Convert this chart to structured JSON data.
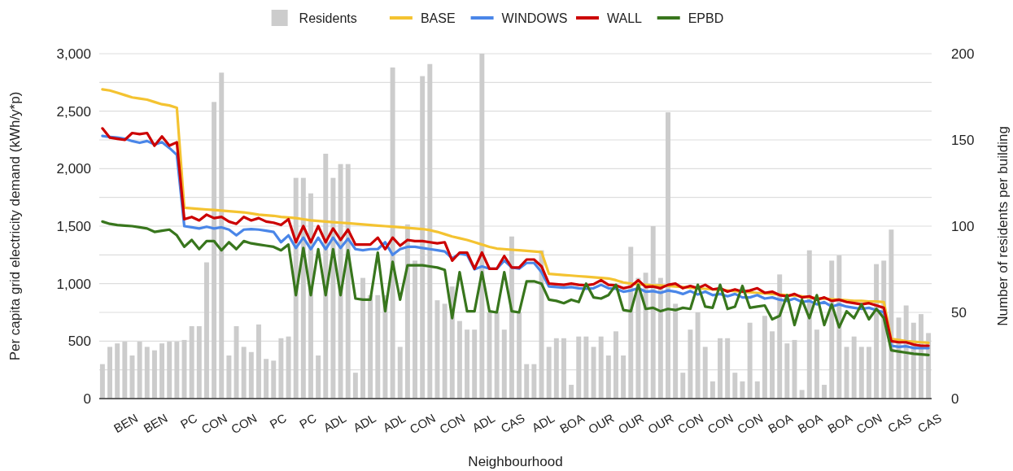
{
  "chart_data": {
    "type": "line",
    "xlabel": "Neighbourhood",
    "ylabel": "Per capita grid electricity demand (kWh/y*p)",
    "y2label": "Number of residents per building",
    "categories": [
      null,
      null,
      null,
      "BEN",
      null,
      null,
      null,
      "BEN",
      null,
      null,
      null,
      "PC",
      null,
      null,
      null,
      "CON",
      null,
      null,
      null,
      "CON",
      null,
      null,
      null,
      "PC",
      null,
      null,
      null,
      "PC",
      null,
      null,
      null,
      "ADL",
      null,
      null,
      null,
      "ADL",
      null,
      null,
      null,
      "ADL",
      null,
      null,
      null,
      "CON",
      null,
      null,
      null,
      "CON",
      null,
      null,
      null,
      "ADL",
      null,
      null,
      null,
      "CAS",
      null,
      null,
      null,
      "ADL",
      null,
      null,
      null,
      "BOA",
      null,
      null,
      null,
      "OUR",
      null,
      null,
      null,
      "OUR",
      null,
      null,
      null,
      "OUR",
      null,
      null,
      null,
      "CON",
      null,
      null,
      null,
      "CON",
      null,
      null,
      null,
      "CON",
      null,
      null,
      null,
      "BOA",
      null,
      null,
      null,
      "BOA",
      null,
      null,
      null,
      "BOA",
      null,
      null,
      null,
      "CON",
      null,
      null,
      null,
      "CAS",
      null,
      null,
      null,
      "CAS"
    ],
    "series": [
      {
        "name": "Residents",
        "type": "bar",
        "axis": "y2",
        "color": "#cccccc",
        "values": [
          20,
          30,
          32,
          33,
          25,
          33,
          30,
          28,
          32,
          33,
          33,
          34,
          42,
          42,
          79,
          172,
          189,
          25,
          42,
          30,
          27,
          43,
          23,
          22,
          35,
          36,
          128,
          128,
          119,
          25,
          142,
          128,
          136,
          136,
          15,
          70,
          60,
          60,
          60,
          192,
          30,
          101,
          80,
          187,
          194,
          57,
          55,
          65,
          45,
          40,
          40,
          200,
          50,
          50,
          40,
          94,
          50,
          20,
          20,
          86,
          30,
          35,
          35,
          8,
          36,
          36,
          30,
          36,
          25,
          39,
          25,
          88,
          70,
          73,
          100,
          70,
          166,
          55,
          15,
          40,
          50,
          30,
          10,
          35,
          35,
          15,
          10,
          44,
          10,
          48,
          39,
          72,
          32,
          34,
          5,
          86,
          40,
          8,
          80,
          83,
          30,
          36,
          30,
          30,
          78,
          80,
          98,
          47,
          54,
          44,
          49,
          38
        ]
      },
      {
        "name": "BASE",
        "color": "#f4c331",
        "values": [
          2690,
          2680,
          2660,
          2640,
          2620,
          2610,
          2600,
          2580,
          2560,
          2550,
          2530,
          1660,
          1655,
          1650,
          1645,
          1640,
          1635,
          1630,
          1625,
          1620,
          1610,
          1600,
          1595,
          1590,
          1580,
          1575,
          1570,
          1560,
          1550,
          1545,
          1540,
          1535,
          1530,
          1525,
          1520,
          1515,
          1510,
          1505,
          1500,
          1495,
          1490,
          1485,
          1480,
          1475,
          1465,
          1450,
          1430,
          1410,
          1395,
          1380,
          1360,
          1340,
          1320,
          1305,
          1300,
          1295,
          1290,
          1285,
          1280,
          1275,
          1085,
          1080,
          1075,
          1070,
          1065,
          1060,
          1055,
          1050,
          1045,
          1030,
          1010,
          1000,
          995,
          990,
          985,
          985,
          980,
          975,
          970,
          965,
          960,
          955,
          950,
          945,
          940,
          935,
          930,
          925,
          920,
          915,
          910,
          905,
          900,
          895,
          890,
          880,
          875,
          870,
          865,
          860,
          855,
          850,
          850,
          845,
          845,
          840,
          520,
          510,
          500,
          495,
          490,
          485
        ]
      },
      {
        "name": "WINDOWS",
        "color": "#4a86e8",
        "values": [
          2285,
          2275,
          2270,
          2260,
          2240,
          2225,
          2240,
          2210,
          2230,
          2180,
          2120,
          1500,
          1490,
          1480,
          1495,
          1480,
          1490,
          1470,
          1420,
          1470,
          1475,
          1470,
          1460,
          1450,
          1360,
          1420,
          1310,
          1400,
          1300,
          1400,
          1300,
          1400,
          1310,
          1390,
          1300,
          1290,
          1300,
          1300,
          1360,
          1250,
          1300,
          1320,
          1320,
          1310,
          1300,
          1290,
          1280,
          1220,
          1260,
          1250,
          1125,
          1150,
          1130,
          1130,
          1200,
          1140,
          1130,
          1180,
          1180,
          1100,
          975,
          970,
          965,
          970,
          960,
          955,
          960,
          990,
          960,
          955,
          930,
          940,
          960,
          930,
          935,
          920,
          940,
          930,
          910,
          935,
          905,
          930,
          900,
          910,
          890,
          910,
          880,
          880,
          900,
          870,
          880,
          860,
          850,
          870,
          840,
          850,
          820,
          840,
          800,
          820,
          800,
          790,
          780,
          790,
          770,
          750,
          460,
          450,
          455,
          440,
          440,
          440
        ]
      },
      {
        "name": "WALL",
        "color": "#cc0000",
        "values": [
          2350,
          2270,
          2260,
          2250,
          2310,
          2300,
          2310,
          2200,
          2280,
          2200,
          2230,
          1560,
          1580,
          1550,
          1600,
          1570,
          1580,
          1540,
          1520,
          1580,
          1550,
          1570,
          1540,
          1530,
          1510,
          1560,
          1360,
          1500,
          1360,
          1500,
          1360,
          1480,
          1380,
          1470,
          1340,
          1340,
          1340,
          1400,
          1300,
          1400,
          1330,
          1380,
          1370,
          1370,
          1360,
          1350,
          1360,
          1200,
          1270,
          1270,
          1130,
          1270,
          1130,
          1130,
          1240,
          1140,
          1140,
          1210,
          1210,
          1150,
          1000,
          995,
          990,
          1000,
          990,
          985,
          995,
          1030,
          990,
          985,
          960,
          975,
          1030,
          970,
          975,
          960,
          990,
          1000,
          960,
          980,
          960,
          990,
          950,
          960,
          930,
          950,
          930,
          940,
          960,
          920,
          930,
          900,
          890,
          910,
          880,
          890,
          860,
          880,
          850,
          860,
          840,
          830,
          820,
          830,
          810,
          790,
          500,
          490,
          490,
          470,
          460,
          460
        ]
      },
      {
        "name": "EPBD",
        "color": "#38761d",
        "values": [
          1540,
          1520,
          1510,
          1505,
          1500,
          1490,
          1480,
          1450,
          1460,
          1470,
          1420,
          1320,
          1380,
          1300,
          1370,
          1370,
          1290,
          1360,
          1300,
          1370,
          1350,
          1340,
          1330,
          1320,
          1290,
          1340,
          900,
          1310,
          900,
          1300,
          900,
          1300,
          900,
          1290,
          870,
          860,
          860,
          1270,
          760,
          1190,
          860,
          1160,
          1160,
          1160,
          1150,
          1140,
          1120,
          700,
          1100,
          760,
          760,
          1100,
          760,
          750,
          1100,
          760,
          750,
          1020,
          1020,
          1000,
          860,
          850,
          830,
          860,
          840,
          1000,
          880,
          870,
          900,
          990,
          770,
          760,
          990,
          780,
          790,
          760,
          780,
          770,
          790,
          780,
          990,
          800,
          790,
          990,
          780,
          800,
          980,
          790,
          800,
          810,
          690,
          720,
          900,
          640,
          860,
          700,
          900,
          640,
          820,
          620,
          760,
          700,
          820,
          690,
          780,
          700,
          420,
          410,
          400,
          390,
          385,
          380
        ]
      }
    ],
    "ylim": [
      0,
      3000
    ],
    "yticks": [
      0,
      {
        "value": 250,
        "label": null
      },
      {
        "value": 500,
        "label": "500"
      },
      {
        "value": 750,
        "label": null
      },
      {
        "value": 1000,
        "label": "1,000"
      },
      {
        "value": 1250,
        "label": null
      },
      {
        "value": 1500,
        "label": "1,500"
      },
      {
        "value": 1750,
        "label": null
      },
      {
        "value": 2000,
        "label": "2,000"
      },
      {
        "value": 2250,
        "label": null
      },
      {
        "value": 2500,
        "label": "2,500"
      },
      {
        "value": 2750,
        "label": null
      },
      {
        "value": 3000,
        "label": "3,000"
      }
    ],
    "y2lim": [
      0,
      200
    ],
    "y2ticks": [
      0,
      50,
      100,
      150,
      200
    ],
    "grid": "y",
    "legend": "top",
    "marker": "none",
    "line_style": "solid"
  }
}
